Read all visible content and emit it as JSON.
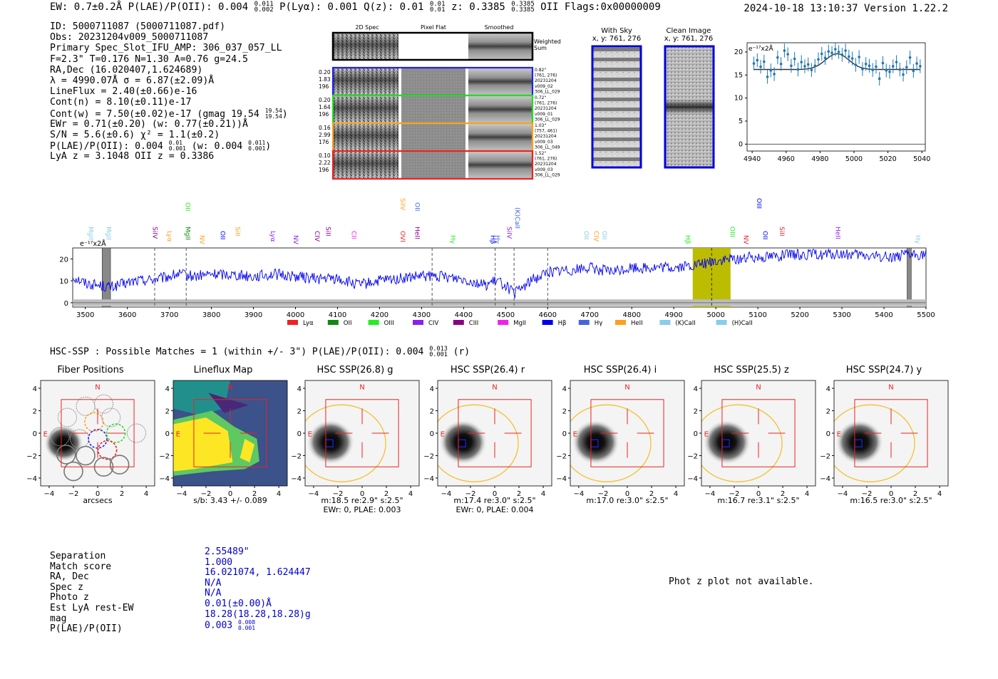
{
  "header": {
    "left": "EW: 0.7±0.2Å  P(LAE)/P(OII): 0.004 ",
    "left_sup": "0.011",
    "left_sub": "0.002",
    "plya": "  P(Lyα): 0.001  Q(z): 0.01 ",
    "qz_sup": "0.01",
    "qz_sub": "0.01",
    "z": "  z: 0.3385 ",
    "z_sup": "0.3385",
    "z_sub": "0.3385",
    "z_line": " OII   Flags:0x00000009",
    "right": "2024-10-18 13:10:37  Version 1.22.2"
  },
  "info": {
    "id": "ID: 5000711087 (5000711087.pdf)",
    "obs": "Obs: 20231204v009_5000711087",
    "primary": "Primary Spec_Slot_IFU_AMP: 306_037_057_LL",
    "params": "F=2.3\"  T=0.176  N=1.30  A=0.76  g=24.5",
    "radec": "RA,Dec (16.020407,1.624689)",
    "lambda": "λ = 4990.07Å   σ = 6.87(±2.09)Å",
    "lineflux": "LineFlux = 2.40(±0.66)e-16",
    "contn": "Cont(n) = 8.10(±0.11)e-17",
    "contw": "Cont(w) = 7.50(±0.02)e-17 (gmag 19.54 ",
    "contw_sup": "19.54",
    "contw_sub": "19.54",
    "contw_end": ")",
    "ewr": "EWr = 0.71(±0.20) (w: 0.77(±0.21))Å",
    "sn": "S/N = 5.6(±0.6)  χ² = 1.1(±0.2)",
    "plae": "P(LAE)/P(OII): 0.004 ",
    "plae_sup": "0.01",
    "plae_sub": "0.001",
    "plae_w": " (w: 0.004 ",
    "plae_w_sup": "0.011",
    "plae_w_sub": "0.001",
    "plae_end": ")",
    "lyaz": "LyA z = 3.1048   OII z = 0.3386"
  },
  "cutouts": {
    "col_2d": "2D Spec",
    "col_flat": "Pixel Flat",
    "col_smooth": "Smoothed",
    "weighted": "Weighted",
    "sum": "Sum",
    "rows": [
      {
        "left": [
          "0.20",
          "1.83",
          "196"
        ],
        "right": [
          "0.82\"",
          "(761, 276)",
          "20231204",
          "v009_02",
          "306_LL_029"
        ],
        "color": "#2222ee"
      },
      {
        "left": [
          "0.20",
          "1.64",
          "196"
        ],
        "right": [
          "0.72\"",
          "(761, 276)",
          "20231204",
          "v009_01",
          "306_LL_029"
        ],
        "color": "#22dd22"
      },
      {
        "left": [
          "0.16",
          "2.99",
          "176"
        ],
        "right": [
          "1.03\"",
          "(757, 461)",
          "20231204",
          "v009_03",
          "306_LL_049"
        ],
        "color": "#ffa020"
      },
      {
        "left": [
          "0.10",
          "2.22",
          "196"
        ],
        "right": [
          "1.52\"",
          "(761, 276)",
          "20231204",
          "v009_03",
          "306_LL_029"
        ],
        "color": "#ee2222"
      }
    ],
    "with_sky": "With Sky",
    "with_sky_xy": "x, y: 761, 276",
    "clean": "Clean Image",
    "clean_xy": "x, y: 761, 276"
  },
  "chart_data": [
    {
      "type": "scatter",
      "title": "",
      "unit_label": "e⁻¹⁷x2Å",
      "xlim": [
        4937,
        5042
      ],
      "ylim": [
        -1.5,
        22
      ],
      "xticks": [
        4940,
        4960,
        4980,
        5000,
        5020,
        5040
      ],
      "yticks": [
        0,
        5,
        10,
        15,
        20
      ],
      "x": [
        4941,
        4943,
        4945,
        4947,
        4949,
        4951,
        4953,
        4955,
        4957,
        4959,
        4961,
        4963,
        4965,
        4967,
        4969,
        4971,
        4973,
        4975,
        4977,
        4979,
        4981,
        4983,
        4985,
        4987,
        4989,
        4991,
        4993,
        4995,
        4997,
        4999,
        5001,
        5003,
        5005,
        5007,
        5009,
        5011,
        5013,
        5015,
        5017,
        5019,
        5021,
        5023,
        5025,
        5027,
        5029,
        5031,
        5033,
        5035,
        5037,
        5039
      ],
      "y": [
        17.5,
        18.2,
        16.8,
        17.9,
        14.6,
        16.0,
        15.2,
        18.8,
        17.4,
        20.3,
        19.5,
        17.0,
        18.5,
        16.2,
        17.8,
        16.9,
        17.3,
        16.1,
        17.0,
        18.4,
        19.6,
        18.7,
        20.1,
        19.8,
        20.6,
        20.0,
        19.4,
        20.3,
        19.0,
        18.6,
        17.2,
        18.9,
        16.3,
        17.4,
        17.0,
        16.1,
        16.8,
        14.2,
        17.6,
        16.0,
        15.7,
        16.9,
        17.8,
        16.2,
        15.1,
        16.7,
        18.8,
        15.9,
        17.5,
        16.9
      ],
      "err": 1.5,
      "fit": {
        "continuum": 16.2,
        "amplitude": 3.4,
        "center": 4990.07,
        "sigma": 6.87
      }
    },
    {
      "type": "line",
      "title": "",
      "unit_label": "e⁻¹⁷x2Å",
      "xlim": [
        3470,
        5500
      ],
      "ylim": [
        -2,
        25
      ],
      "xticks": [
        3500,
        3600,
        3700,
        3800,
        3900,
        4000,
        4100,
        4200,
        4300,
        4400,
        4500,
        4600,
        4700,
        4800,
        4900,
        5000,
        5100,
        5200,
        5300,
        5400,
        5500
      ],
      "yticks": [
        0,
        10,
        20
      ],
      "anchors": [
        [
          3470,
          12
        ],
        [
          3500,
          9
        ],
        [
          3560,
          7
        ],
        [
          3620,
          10
        ],
        [
          3680,
          11
        ],
        [
          3720,
          13
        ],
        [
          3760,
          12
        ],
        [
          3800,
          13
        ],
        [
          3850,
          13
        ],
        [
          3900,
          12
        ],
        [
          3950,
          13
        ],
        [
          4000,
          12
        ],
        [
          4050,
          11
        ],
        [
          4100,
          11
        ],
        [
          4150,
          8
        ],
        [
          4200,
          10
        ],
        [
          4250,
          11
        ],
        [
          4300,
          12
        ],
        [
          4350,
          12
        ],
        [
          4400,
          11
        ],
        [
          4450,
          8
        ],
        [
          4480,
          10
        ],
        [
          4500,
          8
        ],
        [
          4520,
          4
        ],
        [
          4560,
          10
        ],
        [
          4600,
          14
        ],
        [
          4650,
          15
        ],
        [
          4700,
          16
        ],
        [
          4750,
          14
        ],
        [
          4800,
          16
        ],
        [
          4850,
          16
        ],
        [
          4900,
          16
        ],
        [
          4950,
          17
        ],
        [
          5000,
          19
        ],
        [
          5050,
          20
        ],
        [
          5100,
          21
        ],
        [
          5200,
          22
        ],
        [
          5300,
          22
        ],
        [
          5400,
          21
        ],
        [
          5500,
          22
        ]
      ],
      "noise_amp": 1.6,
      "highlight_band": [
        4945,
        5035
      ],
      "line_center": 4990.07,
      "masked": [
        [
          3540,
          3560
        ],
        [
          5455,
          5465
        ]
      ],
      "dashed": [
        3665,
        3740,
        4325,
        4475,
        4520,
        4600
      ],
      "legend": [
        {
          "label": "Lyα",
          "color": "#ee2222"
        },
        {
          "label": "OII",
          "color": "#118811"
        },
        {
          "label": "OIII",
          "color": "#22ee22"
        },
        {
          "label": "CIV",
          "color": "#8822ee"
        },
        {
          "label": "CIII",
          "color": "#880088"
        },
        {
          "label": "MgII",
          "color": "#ee22ee"
        },
        {
          "label": "Hβ",
          "color": "#0000ee"
        },
        {
          "label": "Hγ",
          "color": "#4466dd"
        },
        {
          "label": "HeII",
          "color": "#ffa020"
        },
        {
          "label": "(K)CaII",
          "color": "#88ccee"
        },
        {
          "label": "(H)CaII",
          "color": "#88ccee"
        }
      ],
      "line_labels": [
        {
          "label": "MgII",
          "wl": 3512,
          "color": "#88ccee",
          "row": 0
        },
        {
          "label": "MgII",
          "wl": 3555,
          "color": "#88ccee",
          "row": 0
        },
        {
          "label": "SiIV",
          "wl": 3665,
          "color": "#880088",
          "row": 0
        },
        {
          "label": "Lyα",
          "wl": 3700,
          "color": "#ffa020",
          "row": 0
        },
        {
          "label": "OII",
          "wl": 3743,
          "color": "#22ee22",
          "row": 2
        },
        {
          "label": "MgII",
          "wl": 3743,
          "color": "#118811",
          "row": 0
        },
        {
          "label": "NV",
          "wl": 3777,
          "color": "#ffa020",
          "row": 0
        },
        {
          "label": "OII",
          "wl": 3826,
          "color": "#0000ee",
          "row": 0
        },
        {
          "label": "SiII",
          "wl": 3862,
          "color": "#ffa020",
          "row": 0
        },
        {
          "label": "Lyα",
          "wl": 3946,
          "color": "#8822ee",
          "row": 0
        },
        {
          "label": "NV",
          "wl": 4000,
          "color": "#8822ee",
          "row": 0
        },
        {
          "label": "CIV",
          "wl": 4051,
          "color": "#880088",
          "row": 0
        },
        {
          "label": "SiII",
          "wl": 4077,
          "color": "#880088",
          "row": 0
        },
        {
          "label": "CII",
          "wl": 4138,
          "color": "#ee22ee",
          "row": 0
        },
        {
          "label": "SiIV",
          "wl": 4254,
          "color": "#ffa020",
          "row": 2
        },
        {
          "label": "OVI",
          "wl": 4254,
          "color": "#ee2222",
          "row": 0
        },
        {
          "label": "OII",
          "wl": 4289,
          "color": "#4466dd",
          "row": 2
        },
        {
          "label": "HeII",
          "wl": 4289,
          "color": "#880088",
          "row": 0
        },
        {
          "label": "Hγ",
          "wl": 4374,
          "color": "#22ee22",
          "row": 0
        },
        {
          "label": "Hβ",
          "wl": 4469,
          "color": "#0000ee",
          "row": 0
        },
        {
          "label": "Hγ",
          "wl": 4480,
          "color": "#4466dd",
          "row": 0
        },
        {
          "label": "SiIV",
          "wl": 4508,
          "color": "#8822ee",
          "row": 0
        },
        {
          "label": "(K)CaII",
          "wl": 4527,
          "color": "#4466dd",
          "row": 1
        },
        {
          "label": "OII",
          "wl": 4691,
          "color": "#88ccee",
          "row": 0
        },
        {
          "label": "CIV",
          "wl": 4715,
          "color": "#ffa020",
          "row": 0
        },
        {
          "label": "OII",
          "wl": 4734,
          "color": "#88ccee",
          "row": 0
        },
        {
          "label": "Hβ",
          "wl": 4933,
          "color": "#22ee22",
          "row": 0
        },
        {
          "label": "OIII",
          "wl": 5039,
          "color": "#22ee22",
          "row": 0
        },
        {
          "label": "NV",
          "wl": 5071,
          "color": "#ee2222",
          "row": 0
        },
        {
          "label": "OIII",
          "wl": 5102,
          "color": "#0000ee",
          "row": 2
        },
        {
          "label": "OII",
          "wl": 5117,
          "color": "#0000ee",
          "row": 0
        },
        {
          "label": "SiII",
          "wl": 5157,
          "color": "#ee2222",
          "row": 0
        },
        {
          "label": "HeII",
          "wl": 5290,
          "color": "#8822ee",
          "row": 0
        },
        {
          "label": "Hγ",
          "wl": 5480,
          "color": "#88ccee",
          "row": 0
        }
      ]
    }
  ],
  "hsc": {
    "title": "HSC-SSP : Possible Matches = 1 (within +/- 3\")  P(LAE)/P(OII): 0.004 ",
    "title_sup": "0.013",
    "title_sub": "0.001",
    "title_end": " (r)",
    "north": "N",
    "east": "E",
    "ticks": [
      "−4",
      "−2",
      "0",
      "2",
      "4"
    ],
    "panels": [
      {
        "title": "Fiber Positions",
        "cap1": "arcsecs",
        "cap2": "",
        "type": "fiber"
      },
      {
        "title": "Lineflux Map",
        "cap1": "s/b: 3.43 +/- 0.089",
        "cap2": "",
        "type": "lineflux"
      },
      {
        "title": "HSC SSP(26.8) g",
        "cap1": "m:18.5  re:2.9\"  s:2.5\"",
        "cap2": "EWr: 0, PLAE: 0.003",
        "type": "galaxy"
      },
      {
        "title": "HSC SSP(26.4) r",
        "cap1": "m:17.4  re:3.0\"  s:2.5\"",
        "cap2": "EWr: 0, PLAE: 0.004",
        "type": "galaxy"
      },
      {
        "title": "HSC SSP(26.4) i",
        "cap1": "m:17.0  re:3.0\"  s:2.5\"",
        "cap2": "",
        "type": "galaxy"
      },
      {
        "title": "HSC SSP(25.5) z",
        "cap1": "m:16.7  re:3.1\"  s:2.5\"",
        "cap2": "",
        "type": "galaxy"
      },
      {
        "title": "HSC SSP(24.7) y",
        "cap1": "m:16.5  re:3.0\"  s:2.5\"",
        "cap2": "",
        "type": "galaxy"
      }
    ]
  },
  "summary": {
    "labels": [
      "Separation",
      "Match score",
      "RA, Dec",
      "Spec z",
      "Photo z",
      "Est LyA rest-EW",
      "mag",
      "P(LAE)/P(OII)"
    ],
    "values": [
      "2.55489\"",
      "1.000",
      "16.021074, 1.624447",
      "N/A",
      "N/A",
      "0.01(±0.00)Å",
      "18.28(18.28,18.28)g",
      "0.003 "
    ],
    "last_sup": "0.008",
    "last_sub": "0.001",
    "phot_z": "Phot z plot not available."
  }
}
